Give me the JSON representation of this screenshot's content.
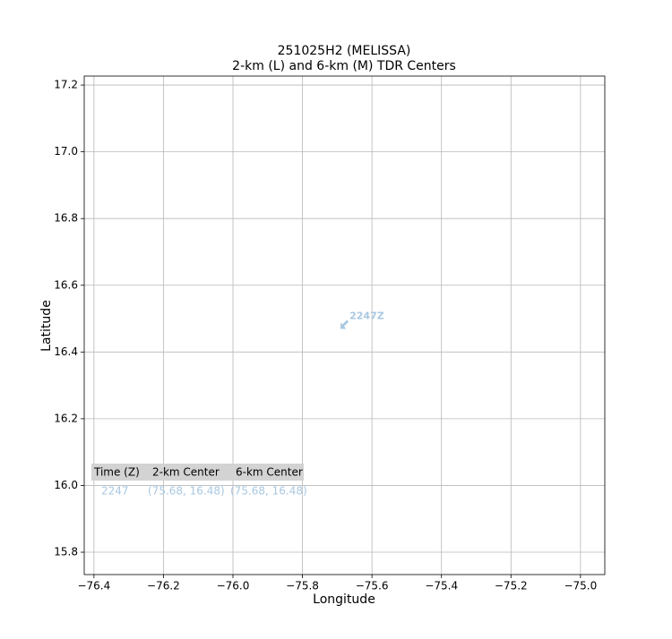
{
  "chart_data": {
    "type": "scatter",
    "title": "251025H2 (MELISSA)",
    "subtitle": "2-km (L) and 6-km (M) TDR Centers",
    "x_label": "Longitude",
    "y_label": "Latitude",
    "xlim": [
      -76.428,
      -74.93
    ],
    "ylim": [
      15.733,
      17.227
    ],
    "xticks": [
      {
        "value": -76.4,
        "label": "−76.4"
      },
      {
        "value": -76.2,
        "label": "−76.2"
      },
      {
        "value": -76.0,
        "label": "−76.0"
      },
      {
        "value": -75.8,
        "label": "−75.8"
      },
      {
        "value": -75.6,
        "label": "−75.6"
      },
      {
        "value": -75.4,
        "label": "−75.4"
      },
      {
        "value": -75.2,
        "label": "−75.2"
      },
      {
        "value": -75.0,
        "label": "−75.0"
      }
    ],
    "yticks": [
      15.8,
      {
        "value": 16.0,
        "label": "16.0"
      },
      16.2,
      16.4,
      16.6,
      16.8,
      {
        "value": 17.0,
        "label": "17.0"
      },
      17.2
    ],
    "grid": true,
    "series": [
      {
        "color": "#a9c8e2",
        "x": [
          -75.68
        ],
        "y": [
          16.48
        ],
        "point_labels": [
          "2247Z"
        ]
      }
    ],
    "table": {
      "columns": [
        "Time (Z)",
        "2-km Center",
        "6-km Center"
      ],
      "rows": [
        [
          "2247",
          "(75.68, 16.48)",
          "(75.68, 16.48)"
        ]
      ]
    }
  }
}
